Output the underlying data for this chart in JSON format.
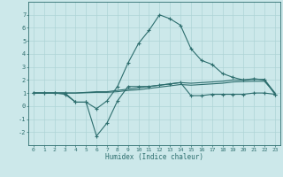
{
  "x_values": [
    0,
    1,
    2,
    3,
    4,
    5,
    6,
    7,
    8,
    9,
    10,
    11,
    12,
    13,
    14,
    15,
    16,
    17,
    18,
    19,
    20,
    21,
    22,
    23
  ],
  "line1": [
    1,
    1,
    1,
    1,
    0.3,
    0.3,
    -0.2,
    0.4,
    1.5,
    3.3,
    4.8,
    5.8,
    7.0,
    6.7,
    6.2,
    4.4,
    3.5,
    3.2,
    2.5,
    2.2,
    2.0,
    2.1,
    2.0,
    0.9
  ],
  "line2": [
    1,
    1,
    1,
    0.9,
    0.3,
    0.3,
    -2.3,
    -1.3,
    0.4,
    1.5,
    1.5,
    1.5,
    1.6,
    1.7,
    1.8,
    0.8,
    0.8,
    0.9,
    0.9,
    0.9,
    0.9,
    1.0,
    1.0,
    0.9
  ],
  "line3": [
    1.0,
    1.0,
    1.0,
    1.0,
    1.0,
    1.05,
    1.1,
    1.1,
    1.2,
    1.3,
    1.4,
    1.5,
    1.6,
    1.7,
    1.8,
    1.75,
    1.8,
    1.85,
    1.9,
    2.0,
    2.0,
    2.05,
    2.05,
    1.0
  ],
  "line4": [
    1.0,
    1.0,
    1.0,
    1.0,
    1.0,
    1.02,
    1.05,
    1.05,
    1.1,
    1.2,
    1.25,
    1.35,
    1.45,
    1.55,
    1.65,
    1.6,
    1.65,
    1.7,
    1.75,
    1.85,
    1.88,
    1.9,
    1.9,
    1.0
  ],
  "line_color": "#2d6e6e",
  "bg_color": "#cce8ea",
  "grid_color": "#aed4d6",
  "xlabel": "Humidex (Indice chaleur)",
  "ylim": [
    -3,
    8
  ],
  "xlim": [
    -0.5,
    23.5
  ],
  "yticks": [
    -2,
    -1,
    0,
    1,
    2,
    3,
    4,
    5,
    6,
    7
  ],
  "xticks": [
    0,
    1,
    2,
    3,
    4,
    5,
    6,
    7,
    8,
    9,
    10,
    11,
    12,
    13,
    14,
    15,
    16,
    17,
    18,
    19,
    20,
    21,
    22,
    23
  ]
}
